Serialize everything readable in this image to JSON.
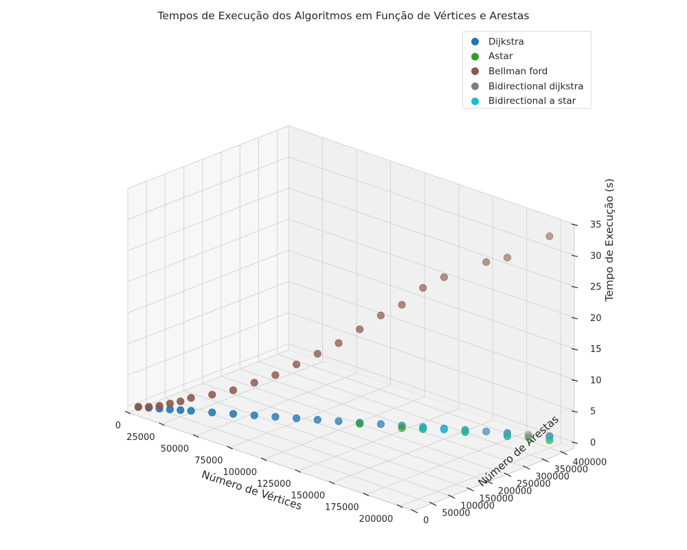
{
  "chart_data": {
    "type": "scatter",
    "projection": "3d",
    "title": "Tempos de Execução dos Algoritmos em Função de Vértices e Arestas",
    "xlabel": "Número de Vértices",
    "ylabel": "Número de Arestas",
    "zlabel": "Tempo de Execução (s)",
    "xlim": [
      0,
      210000
    ],
    "ylim": [
      0,
      430000
    ],
    "zlim": [
      -1,
      35
    ],
    "xticks": [
      0,
      25000,
      50000,
      75000,
      100000,
      125000,
      150000,
      175000,
      200000
    ],
    "yticks": [
      0,
      50000,
      100000,
      150000,
      200000,
      250000,
      300000,
      350000,
      400000
    ],
    "zticks": [
      0,
      5,
      10,
      15,
      20,
      25,
      30,
      35
    ],
    "grid": true,
    "legend_position": "top-right",
    "series": [
      {
        "name": "Dijkstra",
        "color": "#1f77b4",
        "points": [
          [
            5000,
            10000,
            0.02
          ],
          [
            10000,
            20000,
            0.04
          ],
          [
            15000,
            30000,
            0.06
          ],
          [
            20000,
            40000,
            0.08
          ],
          [
            25000,
            50000,
            0.1
          ],
          [
            30000,
            60000,
            0.12
          ],
          [
            40000,
            80000,
            0.15
          ],
          [
            50000,
            100000,
            0.2
          ],
          [
            60000,
            120000,
            0.25
          ],
          [
            70000,
            140000,
            0.3
          ],
          [
            80000,
            160000,
            0.35
          ],
          [
            90000,
            180000,
            0.4
          ],
          [
            100000,
            200000,
            0.45
          ],
          [
            110000,
            220000,
            0.5
          ],
          [
            120000,
            240000,
            0.55
          ],
          [
            130000,
            260000,
            0.6
          ],
          [
            140000,
            280000,
            0.65
          ],
          [
            150000,
            300000,
            0.7
          ],
          [
            160000,
            320000,
            0.75
          ],
          [
            170000,
            340000,
            0.8
          ],
          [
            180000,
            360000,
            0.85
          ],
          [
            200000,
            400000,
            0.9
          ]
        ]
      },
      {
        "name": "Astar",
        "color": "#2ca02c",
        "points": [
          [
            110000,
            220000,
            0.3
          ],
          [
            130000,
            260000,
            0.2
          ],
          [
            140000,
            280000,
            0.3
          ],
          [
            160000,
            320000,
            0.4
          ],
          [
            180000,
            360000,
            0.3
          ],
          [
            190000,
            380000,
            0.4
          ],
          [
            200000,
            400000,
            0.2
          ]
        ]
      },
      {
        "name": "Bellman ford",
        "color": "#8c564b",
        "points": [
          [
            5000,
            10000,
            0.05
          ],
          [
            10000,
            20000,
            0.2
          ],
          [
            15000,
            30000,
            0.5
          ],
          [
            20000,
            40000,
            1.0
          ],
          [
            25000,
            50000,
            1.5
          ],
          [
            30000,
            60000,
            2.2
          ],
          [
            40000,
            80000,
            3.0
          ],
          [
            50000,
            100000,
            4.0
          ],
          [
            60000,
            120000,
            5.5
          ],
          [
            70000,
            140000,
            7.0
          ],
          [
            80000,
            160000,
            9.0
          ],
          [
            90000,
            180000,
            11.0
          ],
          [
            100000,
            200000,
            13.0
          ],
          [
            110000,
            220000,
            15.5
          ],
          [
            120000,
            240000,
            18.0
          ],
          [
            130000,
            260000,
            20.0
          ],
          [
            140000,
            280000,
            23.0
          ],
          [
            150000,
            300000,
            25.0
          ],
          [
            170000,
            340000,
            28.0
          ],
          [
            180000,
            360000,
            29.0
          ],
          [
            200000,
            400000,
            33.0
          ]
        ]
      },
      {
        "name": "Bidirectional dijkstra",
        "color": "#7f7f7f",
        "points": [
          [
            180000,
            360000,
            0.6
          ],
          [
            190000,
            380000,
            0.8
          ],
          [
            200000,
            400000,
            0.9
          ]
        ]
      },
      {
        "name": "Bidirectional a star",
        "color": "#17becf",
        "points": [
          [
            140000,
            280000,
            0.4
          ],
          [
            150000,
            300000,
            0.5
          ],
          [
            160000,
            320000,
            0.5
          ],
          [
            180000,
            360000,
            0.4
          ],
          [
            200000,
            400000,
            0.5
          ]
        ]
      }
    ]
  }
}
